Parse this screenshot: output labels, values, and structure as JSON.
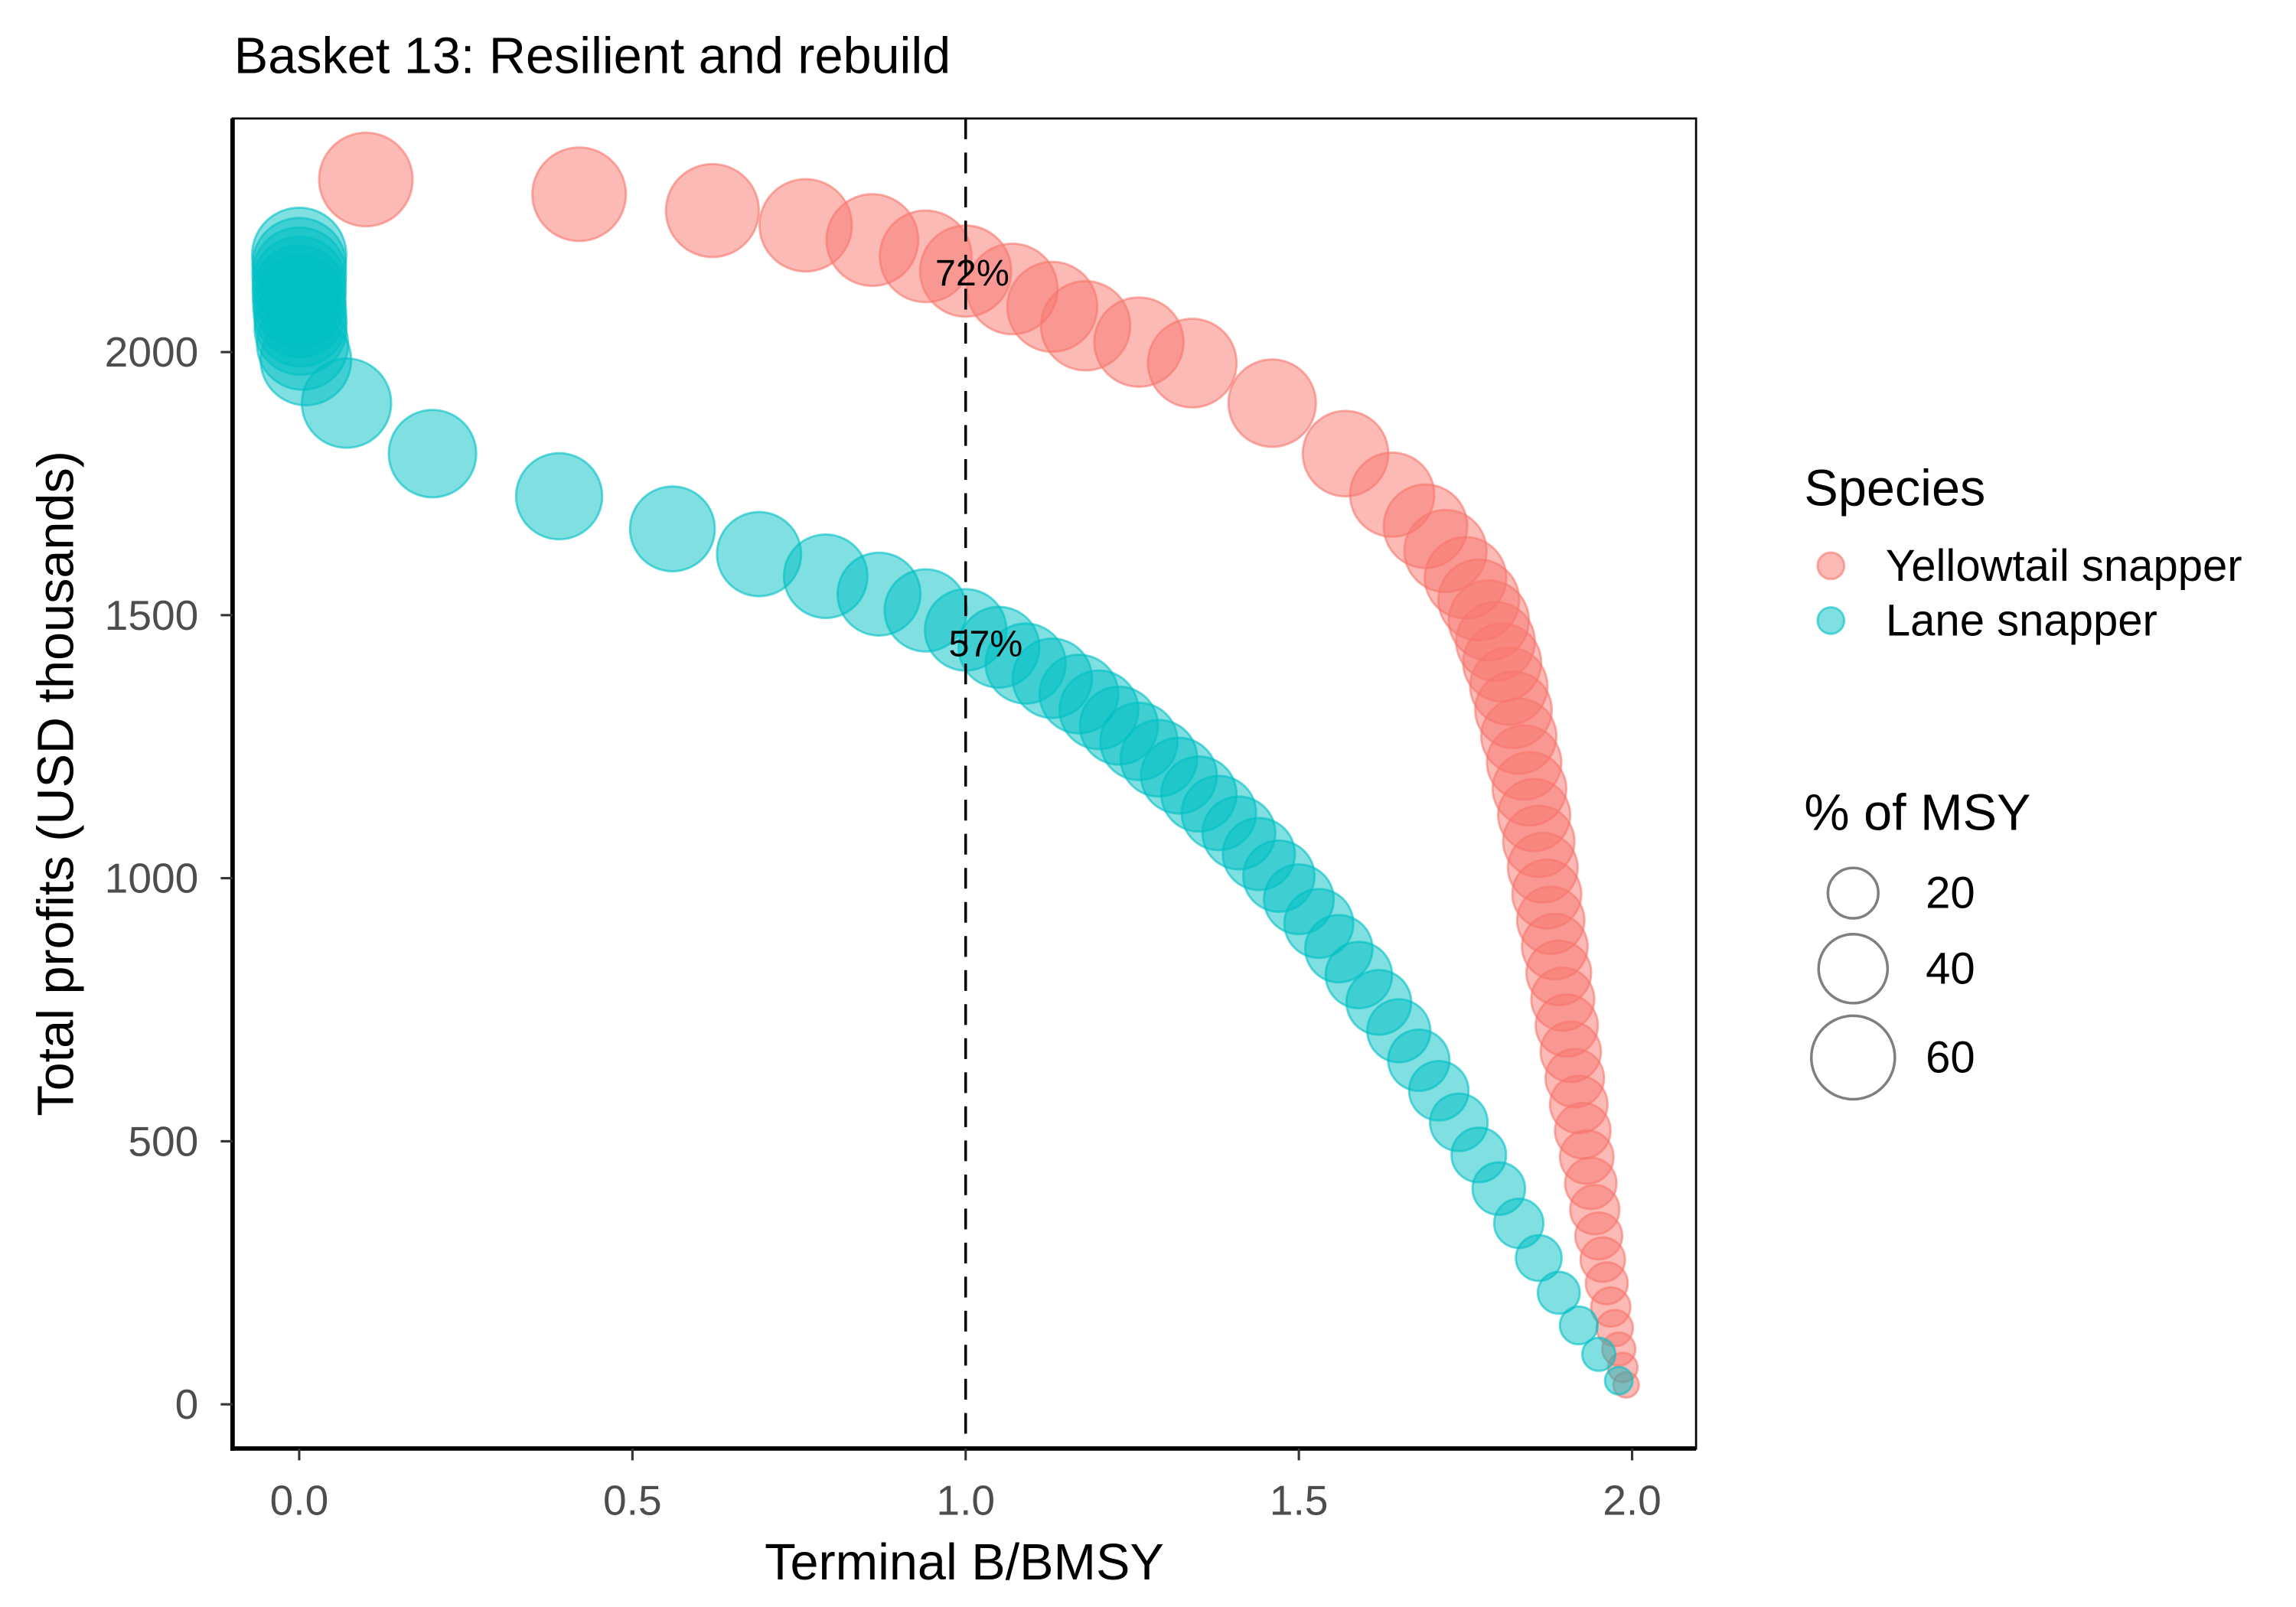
{
  "chart_data": {
    "type": "scatter",
    "title": "Basket 13: Resilient and rebuild",
    "xlabel": "Terminal B/BMSY",
    "ylabel": "Total profits (USD thousands)",
    "xlim": [
      -0.1,
      2.096
    ],
    "ylim": [
      -84,
      2444
    ],
    "xticks": [
      0,
      0.5,
      1,
      1.5,
      2
    ],
    "xtick_labels": [
      "0.0",
      "0.5",
      "1.0",
      "1.5",
      "2.0"
    ],
    "yticks": [
      0,
      500,
      1000,
      1500,
      2000
    ],
    "ytick_labels": [
      "0",
      "500",
      "1000",
      "1500",
      "2000"
    ],
    "grid": false,
    "reference_line": {
      "x": 1.0,
      "style": "dashed",
      "color": "#000000"
    },
    "series": [
      {
        "name": "Yellowtail snapper",
        "color": "#F8766D",
        "x": [
          0.1,
          0.42,
          0.62,
          0.76,
          0.86,
          0.94,
          1.0,
          1.07,
          1.13,
          1.18,
          1.26,
          1.34,
          1.46,
          1.57,
          1.64,
          1.69,
          1.72,
          1.75,
          1.77,
          1.785,
          1.795,
          1.805,
          1.815,
          1.822,
          1.83,
          1.838,
          1.846,
          1.853,
          1.86,
          1.866,
          1.872,
          1.878,
          1.884,
          1.89,
          1.896,
          1.902,
          1.908,
          1.914,
          1.92,
          1.926,
          1.932,
          1.938,
          1.944,
          1.95,
          1.956,
          1.962,
          1.968,
          1.974,
          1.98,
          1.986,
          1.991
        ],
        "y": [
          2328,
          2300,
          2269,
          2241,
          2213,
          2182,
          2154,
          2120,
          2086,
          2050,
          2019,
          1979,
          1903,
          1807,
          1729,
          1669,
          1622,
          1571,
          1529,
          1490,
          1450,
          1410,
          1365,
          1320,
          1270,
          1220,
          1170,
          1120,
          1070,
          1020,
          970,
          920,
          870,
          820,
          770,
          720,
          670,
          620,
          570,
          520,
          470,
          420,
          370,
          320,
          275,
          230,
          185,
          145,
          105,
          70,
          37
        ],
        "pct_of_msy": [
          76,
          76,
          75,
          74,
          73,
          73,
          72,
          71,
          70,
          69,
          69,
          68,
          66,
          63,
          61,
          60,
          58,
          57,
          56,
          55,
          53,
          52,
          51,
          50,
          48,
          47,
          46,
          44,
          43,
          41,
          40,
          38,
          36,
          35,
          33,
          32,
          30,
          28,
          27,
          25,
          23,
          21,
          19,
          17,
          15,
          13,
          11,
          9,
          7,
          5,
          3
        ]
      },
      {
        "name": "Lane snapper",
        "color": "#00BFC4",
        "x": [
          0.0,
          0.0,
          0.0,
          0.0,
          0.0,
          0.0,
          0.001,
          0.002,
          0.002,
          0.005,
          0.01,
          0.071,
          0.2,
          0.39,
          0.56,
          0.69,
          0.79,
          0.87,
          0.94,
          1.0,
          1.05,
          1.09,
          1.13,
          1.17,
          1.2,
          1.23,
          1.26,
          1.29,
          1.32,
          1.35,
          1.38,
          1.41,
          1.44,
          1.47,
          1.5,
          1.53,
          1.56,
          1.59,
          1.62,
          1.65,
          1.68,
          1.71,
          1.74,
          1.77,
          1.8,
          1.83,
          1.86,
          1.89,
          1.92,
          1.95,
          1.98
        ],
        "y": [
          2185,
          2166,
          2148,
          2131,
          2114,
          2096,
          2078,
          2060,
          2044,
          2015,
          1985,
          1903,
          1807,
          1726,
          1664,
          1616,
          1574,
          1540,
          1509,
          1472,
          1439,
          1408,
          1380,
          1350,
          1320,
          1290,
          1260,
          1228,
          1195,
          1160,
          1124,
          1086,
          1046,
          1004,
          960,
          914,
          866,
          816,
          764,
          710,
          654,
          596,
          536,
          474,
          410,
          344,
          278,
          212,
          150,
          95,
          45
        ],
        "pct_of_msy": [
          77,
          76,
          76,
          75,
          75,
          74,
          74,
          73,
          73,
          72,
          71,
          69,
          66,
          64,
          62,
          61,
          60,
          59,
          58,
          57,
          56,
          55,
          54,
          53,
          53,
          52,
          51,
          50,
          49,
          48,
          47,
          45,
          44,
          43,
          41,
          40,
          38,
          37,
          35,
          33,
          31,
          29,
          27,
          24,
          22,
          19,
          16,
          13,
          10,
          7,
          4
        ]
      }
    ],
    "annotations": [
      {
        "text": "72%",
        "x": 1.01,
        "y": 2150
      },
      {
        "text": "57%",
        "x": 1.03,
        "y": 1445
      }
    ],
    "legend": {
      "position": "right",
      "color_title": "Species",
      "size_title": "% of MSY",
      "size_breaks": [
        20,
        40,
        60
      ],
      "size_labels": [
        "20",
        "40",
        "60"
      ],
      "size_key_color": "#7F7F7F"
    }
  }
}
